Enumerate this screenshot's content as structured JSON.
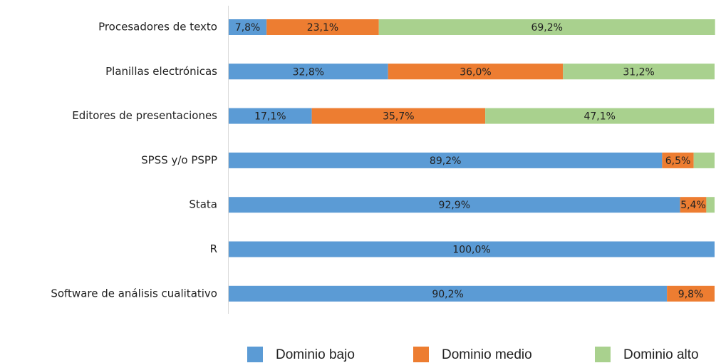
{
  "chart_data": {
    "type": "stacked-bar-horizontal",
    "categories": [
      "Procesadores de texto",
      "Planillas electrónicas",
      "Editores de presentaciones",
      "SPSS y/o PSPP",
      "Stata",
      "R",
      "Software de análisis cualitativo"
    ],
    "xlim": [
      0,
      100
    ],
    "legend": "bottom",
    "series": [
      {
        "name": "Dominio bajo",
        "color": "#5b9bd5",
        "values": [
          7.8,
          32.8,
          17.1,
          89.2,
          92.9,
          100,
          90.2
        ],
        "value_labels": [
          "7,8%",
          "32,8%",
          "17,1%",
          "89,2%",
          "92,9%",
          "100,0%",
          "90,2%"
        ]
      },
      {
        "name": "Dominio medio",
        "color": "#ed7d31",
        "values": [
          23.1,
          36.0,
          35.7,
          6.5,
          5.4,
          0,
          9.8
        ],
        "value_labels": [
          "23,1%",
          "36,0%",
          "35,7%",
          "6,5%",
          "5,4%",
          null,
          "9,8%"
        ]
      },
      {
        "name": "Dominio alto",
        "color": "#a9d18e",
        "values": [
          69.2,
          31.2,
          47.1,
          4.3,
          1.7,
          0,
          0
        ],
        "value_labels": [
          "69,2%",
          "31,2%",
          "47,1%",
          null,
          null,
          null,
          null
        ]
      }
    ]
  }
}
